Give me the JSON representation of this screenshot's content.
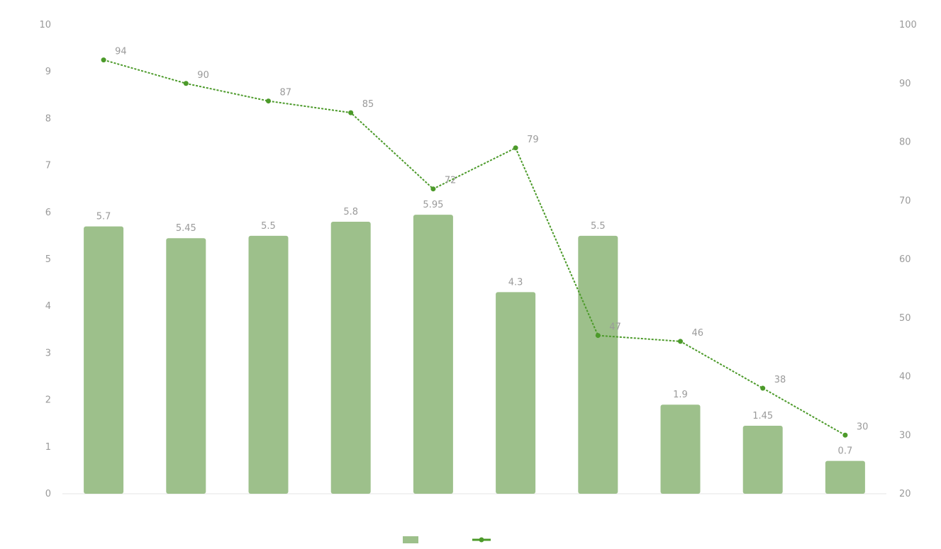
{
  "chart_data": {
    "type": "bar",
    "title": "",
    "categories": [
      "",
      "",
      "",
      "",
      "",
      "",
      "",
      "",
      "",
      ""
    ],
    "series": [
      {
        "type": "bar",
        "axis": "left",
        "values": [
          5.7,
          5.45,
          5.5,
          5.8,
          5.95,
          4.3,
          5.5,
          1.9,
          1.45,
          0.7
        ]
      },
      {
        "type": "line",
        "axis": "right",
        "values": [
          94,
          90,
          87,
          85,
          72,
          79,
          47,
          46,
          38,
          30
        ]
      }
    ],
    "y_left": {
      "ticks": [
        "0",
        "1",
        "2",
        "3",
        "4",
        "5",
        "6",
        "7",
        "8",
        "9",
        "10"
      ],
      "range": [
        0,
        10
      ]
    },
    "y_right": {
      "ticks": [
        "20",
        "30",
        "40",
        "50",
        "60",
        "70",
        "80",
        "90",
        "100"
      ],
      "range": [
        20,
        100
      ]
    },
    "grid": false,
    "legend": {
      "position": "bottom",
      "entries": [
        "",
        ""
      ]
    },
    "colors": {
      "bar": "#9dc08b",
      "line": "#4c9a2a",
      "text": "#9a9a9a"
    }
  }
}
